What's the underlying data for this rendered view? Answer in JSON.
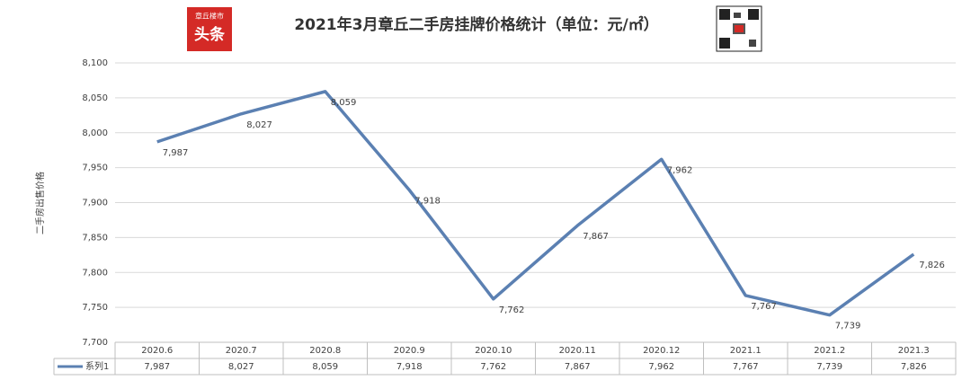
{
  "chart_data": {
    "type": "line",
    "title": "2021年3月章丘二手房挂牌价格统计（单位：元/㎡）",
    "logo": {
      "top": "章丘楼市",
      "bottom": "头条"
    },
    "y_label": "二手房出售价格",
    "categories": [
      "2020.6",
      "2020.7",
      "2020.8",
      "2020.9",
      "2020.10",
      "2020.11",
      "2020.12",
      "2021.1",
      "2021.2",
      "2021.3"
    ],
    "series": [
      {
        "name": "系列1",
        "color": "#5b80b2",
        "values": [
          7987,
          8027,
          8059,
          7918,
          7762,
          7867,
          7962,
          7767,
          7739,
          7826
        ],
        "value_labels": [
          "7,987",
          "8,027",
          "8,059",
          "7,918",
          "7,762",
          "7,867",
          "7,962",
          "7,767",
          "7,739",
          "7,826"
        ]
      }
    ],
    "ylim": [
      7700,
      8100
    ],
    "yticks": [
      {
        "value": 7700,
        "label": "7,700"
      },
      {
        "value": 7750,
        "label": "7,750"
      },
      {
        "value": 7800,
        "label": "7,800"
      },
      {
        "value": 7850,
        "label": "7,850"
      },
      {
        "value": 7900,
        "label": "7,900"
      },
      {
        "value": 7950,
        "label": "7,950"
      },
      {
        "value": 8000,
        "label": "8,000"
      },
      {
        "value": 8050,
        "label": "8,050"
      },
      {
        "value": 8100,
        "label": "8,100"
      }
    ],
    "grid": true
  }
}
